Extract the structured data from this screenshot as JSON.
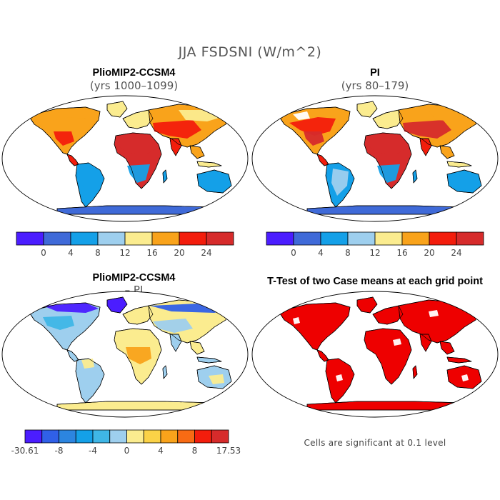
{
  "figure": {
    "title": "JJA FSDSNI (W/m^2)"
  },
  "panels": [
    {
      "id": "plio",
      "title": "PlioMIP2-CCSM4",
      "subtitle": "(yrs 1000–1099)"
    },
    {
      "id": "pi",
      "title": "PI",
      "subtitle": "(yrs 80–179)"
    },
    {
      "id": "diff",
      "title": "PlioMIP2-CCSM4",
      "subtitle": "– PI"
    },
    {
      "id": "ttest",
      "title": "T-Test of two Case means at each grid point",
      "subtitle": ""
    }
  ],
  "colorbars": {
    "absolute": {
      "colors": [
        "#4b1dff",
        "#3f6ad8",
        "#14a0e8",
        "#9ecfee",
        "#fbec8f",
        "#f9a31b",
        "#f31d0c",
        "#d62b2b"
      ],
      "labels": [
        "0",
        "4",
        "8",
        "12",
        "16",
        "20",
        "24"
      ]
    },
    "difference": {
      "colors": [
        "#4b1dff",
        "#3060e8",
        "#2c85e0",
        "#14a0e8",
        "#3fb6e6",
        "#9ecfee",
        "#fbec8f",
        "#fbd247",
        "#f9a31b",
        "#f86b14",
        "#f31d0c",
        "#d62b2b"
      ],
      "labels": [
        "-30.61",
        "-8",
        "-4",
        "0",
        "4",
        "8",
        "17.53"
      ]
    }
  },
  "significance_note": "Cells are significant at 0.1 level",
  "map_colors": {
    "ocean": "#ffffff",
    "plio_land": [
      "#fbec8f",
      "#f9a31b",
      "#f31d0c",
      "#d62b2b",
      "#14a0e8",
      "#9ecfee",
      "#3f6ad8"
    ],
    "diff_land": [
      "#fbec8f",
      "#9ecfee",
      "#3fb6e6",
      "#3060e8",
      "#4b1dff",
      "#f9a31b"
    ],
    "ttest_land": "#ee0000"
  }
}
